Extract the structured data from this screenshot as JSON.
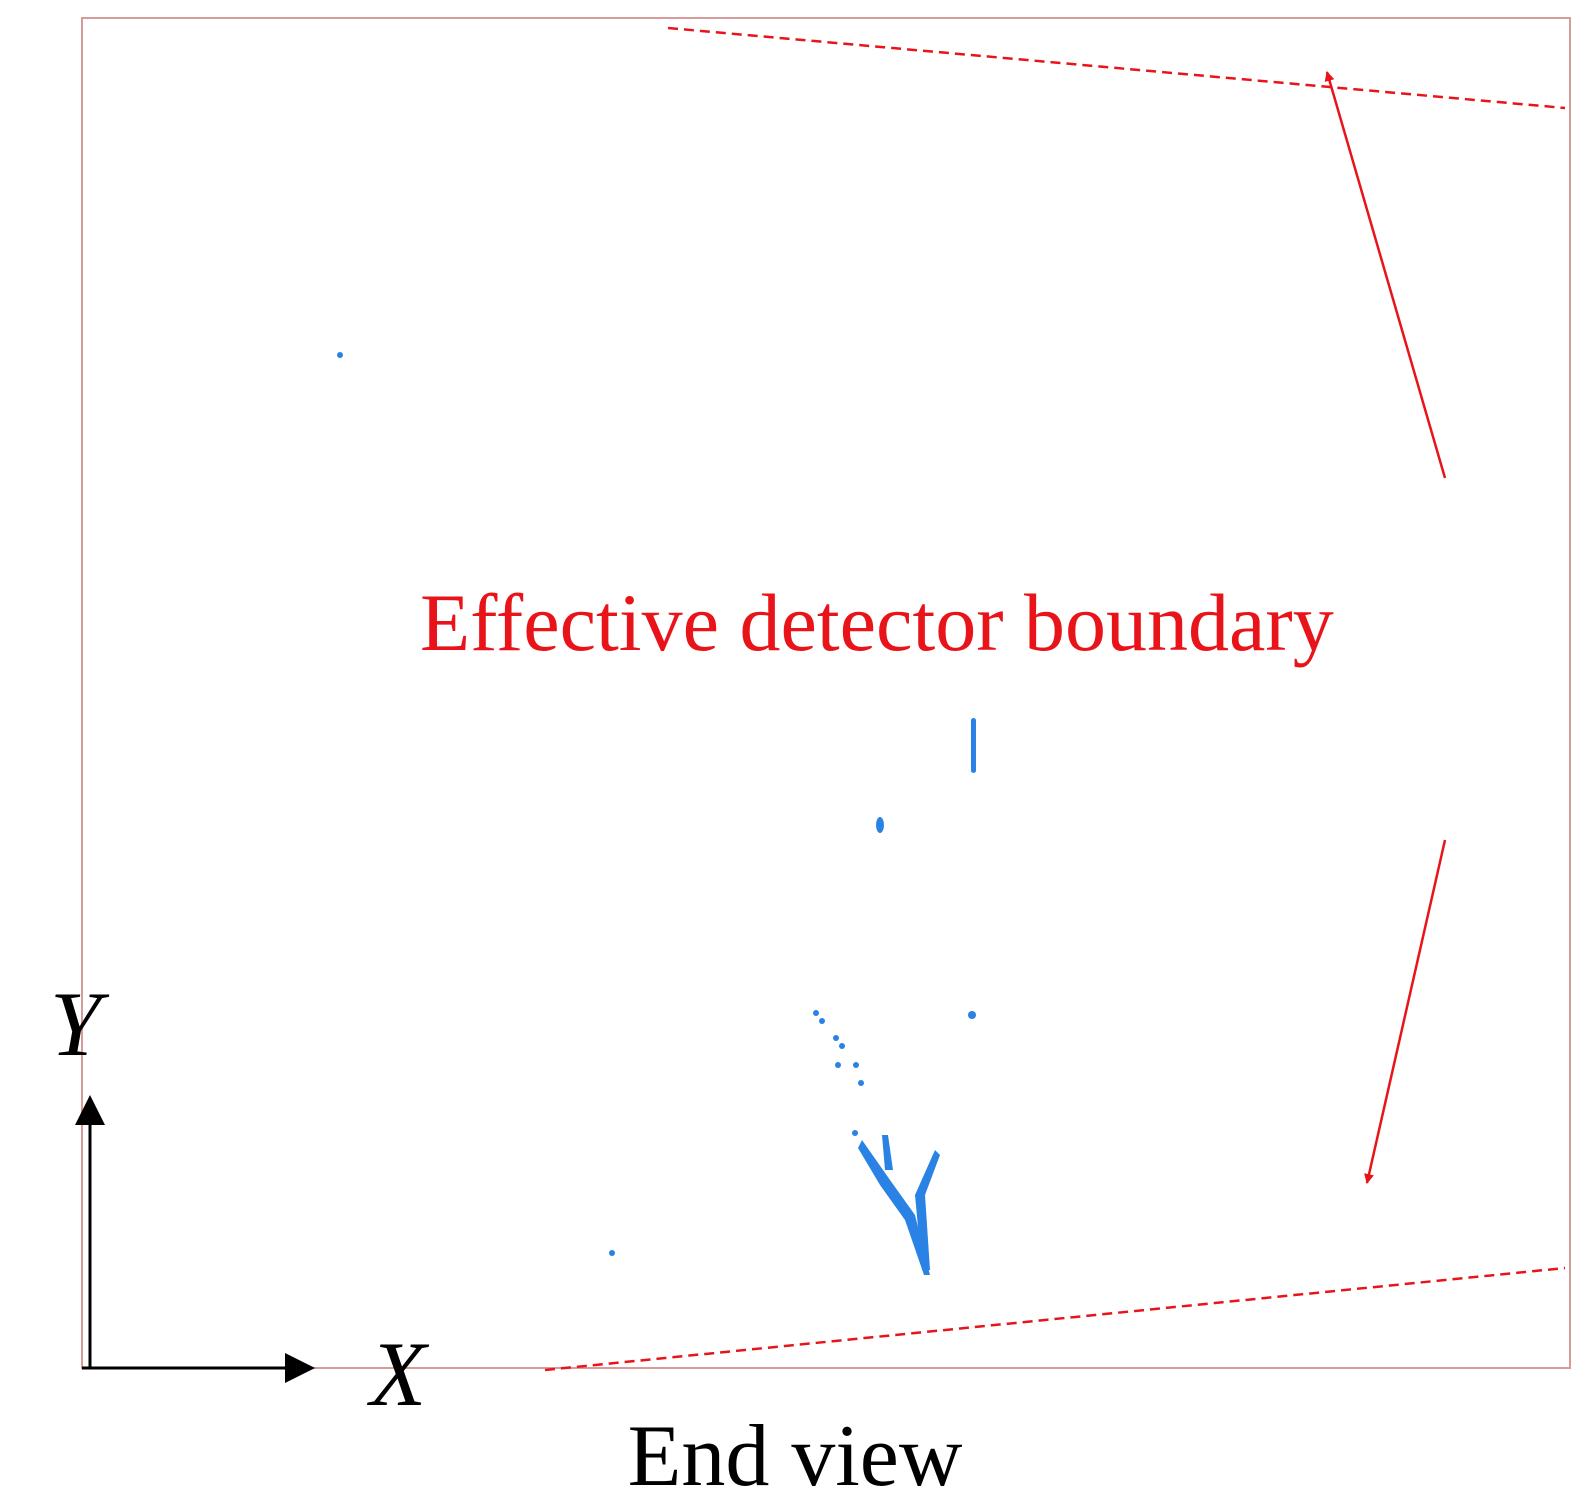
{
  "annotation": "Effective detector boundary",
  "axes": {
    "y": "Y",
    "x": "X"
  },
  "caption": "End view"
}
